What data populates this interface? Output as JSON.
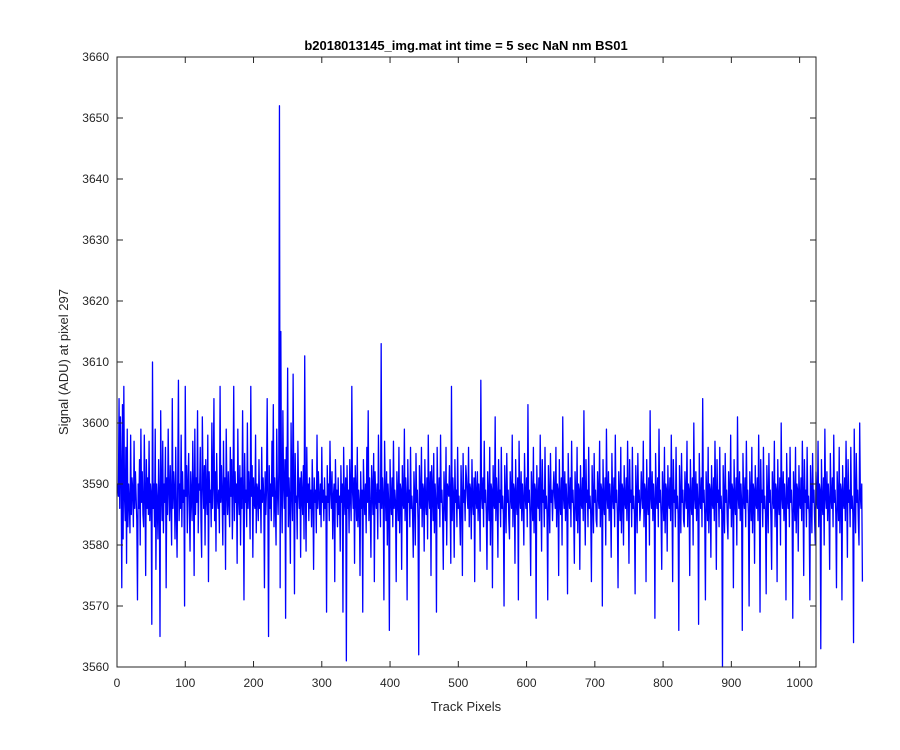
{
  "chart_data": {
    "type": "line",
    "title": "b2018013145_img.mat int time = 5 sec  NaN nm BS01",
    "xlabel": "Track Pixels",
    "ylabel": "Signal (ADU) at pixel 297",
    "xlim": [
      0,
      1024
    ],
    "ylim": [
      3560,
      3660
    ],
    "xticks": [
      0,
      100,
      200,
      300,
      400,
      500,
      600,
      700,
      800,
      900,
      1000
    ],
    "yticks": [
      3560,
      3570,
      3580,
      3590,
      3600,
      3610,
      3620,
      3630,
      3640,
      3650,
      3660
    ],
    "grid": false,
    "legend": "none",
    "series": [
      {
        "color": "#0000ff",
        "x_start": 1,
        "x_step": 1,
        "values": [
          3590,
          3588,
          3604,
          3586,
          3601,
          3592,
          3573,
          3603,
          3581,
          3606,
          3588,
          3584,
          3596,
          3577,
          3599,
          3583,
          3590,
          3587,
          3582,
          3598,
          3585,
          3591,
          3589,
          3583,
          3597,
          3586,
          3592,
          3588,
          3584,
          3571,
          3590,
          3586,
          3594,
          3580,
          3599,
          3587,
          3592,
          3585,
          3583,
          3598,
          3589,
          3575,
          3594,
          3586,
          3591,
          3585,
          3597,
          3584,
          3590,
          3588,
          3567,
          3610,
          3586,
          3590,
          3583,
          3599,
          3576,
          3590,
          3587,
          3581,
          3594,
          3588,
          3565,
          3602,
          3589,
          3584,
          3597,
          3582,
          3590,
          3587,
          3596,
          3573,
          3591,
          3585,
          3599,
          3589,
          3584,
          3593,
          3587,
          3580,
          3604,
          3586,
          3592,
          3589,
          3581,
          3596,
          3585,
          3578,
          3591,
          3607,
          3584,
          3590,
          3586,
          3598,
          3583,
          3592,
          3587,
          3589,
          3570,
          3606,
          3588,
          3593,
          3582,
          3590,
          3595,
          3586,
          3579,
          3592,
          3588,
          3584,
          3597,
          3589,
          3575,
          3599,
          3585,
          3591,
          3587,
          3602,
          3582,
          3590,
          3589,
          3596,
          3584,
          3578,
          3601,
          3591,
          3586,
          3593,
          3580,
          3594,
          3588,
          3585,
          3598,
          3574,
          3592,
          3587,
          3589,
          3583,
          3600,
          3586,
          3590,
          3604,
          3584,
          3592,
          3579,
          3595,
          3588,
          3586,
          3589,
          3582,
          3606,
          3587,
          3593,
          3588,
          3580,
          3597,
          3585,
          3591,
          3576,
          3599,
          3589,
          3585,
          3592,
          3587,
          3583,
          3596,
          3588,
          3594,
          3581,
          3589,
          3606,
          3584,
          3592,
          3587,
          3590,
          3577,
          3599,
          3588,
          3585,
          3593,
          3580,
          3591,
          3586,
          3602,
          3588,
          3571,
          3595,
          3587,
          3589,
          3583,
          3600,
          3586,
          3592,
          3588,
          3581,
          3606,
          3588,
          3593,
          3578,
          3591,
          3587,
          3586,
          3598,
          3582,
          3590,
          3589,
          3584,
          3594,
          3586,
          3589,
          3582,
          3596,
          3587,
          3591,
          3588,
          3573,
          3592,
          3585,
          3589,
          3604,
          3587,
          3565,
          3593,
          3586,
          3590,
          3584,
          3597,
          3588,
          3603,
          3583,
          3591,
          3587,
          3580,
          3599,
          3589,
          3585,
          3592,
          3652,
          3573,
          3615,
          3588,
          3582,
          3602,
          3590,
          3586,
          3594,
          3568,
          3596,
          3588,
          3609,
          3583,
          3591,
          3587,
          3577,
          3600,
          3589,
          3584,
          3608,
          3590,
          3572,
          3595,
          3587,
          3588,
          3581,
          3597,
          3589,
          3586,
          3591,
          3578,
          3592,
          3588,
          3585,
          3593,
          3581,
          3611,
          3588,
          3579,
          3596,
          3587,
          3590,
          3584,
          3591,
          3586,
          3589,
          3583,
          3594,
          3588,
          3576,
          3591,
          3587,
          3589,
          3582,
          3598,
          3586,
          3592,
          3588,
          3585,
          3590,
          3583,
          3596,
          3587,
          3589,
          3584,
          3591,
          3586,
          3588,
          3569,
          3593,
          3587,
          3590,
          3584,
          3597,
          3589,
          3586,
          3592,
          3581,
          3588,
          3590,
          3574,
          3594,
          3587,
          3589,
          3583,
          3591,
          3585,
          3588,
          3579,
          3593,
          3587,
          3590,
          3569,
          3596,
          3588,
          3585,
          3591,
          3561,
          3593,
          3586,
          3589,
          3582,
          3594,
          3588,
          3584,
          3606,
          3589,
          3586,
          3591,
          3577,
          3593,
          3588,
          3584,
          3596,
          3583,
          3589,
          3587,
          3575,
          3592,
          3586,
          3589,
          3569,
          3594,
          3588,
          3585,
          3590,
          3582,
          3596,
          3587,
          3602,
          3584,
          3591,
          3586,
          3578,
          3593,
          3589,
          3585,
          3595,
          3574,
          3592,
          3588,
          3586,
          3590,
          3581,
          3598,
          3587,
          3589,
          3583,
          3613,
          3586,
          3591,
          3588,
          3571,
          3597,
          3589,
          3584,
          3592,
          3580,
          3590,
          3587,
          3566,
          3594,
          3588,
          3585,
          3591,
          3583,
          3597,
          3586,
          3589,
          3587,
          3574,
          3592,
          3588,
          3584,
          3596,
          3582,
          3590,
          3589,
          3576,
          3593,
          3587,
          3586,
          3599,
          3584,
          3591,
          3588,
          3571,
          3594,
          3587,
          3589,
          3583,
          3596,
          3586,
          3588,
          3585,
          3578,
          3592,
          3588,
          3580,
          3595,
          3587,
          3589,
          3584,
          3562,
          3593,
          3588,
          3586,
          3596,
          3583,
          3590,
          3589,
          3579,
          3594,
          3587,
          3585,
          3591,
          3581,
          3598,
          3588,
          3586,
          3592,
          3575,
          3593,
          3589,
          3584,
          3595,
          3582,
          3590,
          3587,
          3569,
          3596,
          3588,
          3586,
          3591,
          3583,
          3598,
          3587,
          3589,
          3585,
          3576,
          3592,
          3588,
          3584,
          3596,
          3580,
          3590,
          3589,
          3588,
          3593,
          3587,
          3577,
          3606,
          3584,
          3591,
          3588,
          3578,
          3594,
          3587,
          3589,
          3583,
          3596,
          3586,
          3588,
          3585,
          3580,
          3593,
          3588,
          3575,
          3595,
          3587,
          3589,
          3584,
          3593,
          3591,
          3588,
          3586,
          3596,
          3583,
          3590,
          3589,
          3581,
          3594,
          3587,
          3585,
          3591,
          3574,
          3592,
          3588,
          3586,
          3592,
          3584,
          3590,
          3587,
          3579,
          3607,
          3588,
          3586,
          3591,
          3583,
          3597,
          3587,
          3589,
          3585,
          3576,
          3592,
          3588,
          3584,
          3596,
          3580,
          3590,
          3589,
          3573,
          3593,
          3587,
          3586,
          3601,
          3584,
          3591,
          3588,
          3578,
          3594,
          3587,
          3589,
          3583,
          3596,
          3586,
          3588,
          3585,
          3570,
          3593,
          3588,
          3582,
          3595,
          3587,
          3589,
          3584,
          3581,
          3592,
          3588,
          3586,
          3598,
          3583,
          3590,
          3589,
          3577,
          3594,
          3587,
          3585,
          3591,
          3571,
          3597,
          3588,
          3586,
          3592,
          3584,
          3590,
          3587,
          3580,
          3595,
          3588,
          3586,
          3591,
          3583,
          3603,
          3587,
          3589,
          3585,
          3575,
          3592,
          3588,
          3584,
          3596,
          3582,
          3590,
          3589,
          3568,
          3593,
          3587,
          3586,
          3591,
          3584,
          3598,
          3588,
          3579,
          3594,
          3587,
          3589,
          3583,
          3596,
          3586,
          3588,
          3585,
          3571,
          3593,
          3588,
          3582,
          3595,
          3587,
          3589,
          3584,
          3589,
          3592,
          3588,
          3586,
          3596,
          3583,
          3590,
          3589,
          3575,
          3594,
          3587,
          3585,
          3591,
          3580,
          3601,
          3588,
          3586,
          3592,
          3584,
          3590,
          3587,
          3572,
          3595,
          3588,
          3586,
          3591,
          3583,
          3597,
          3587,
          3589,
          3585,
          3577,
          3592,
          3588,
          3584,
          3596,
          3582,
          3590,
          3589,
          3576,
          3593,
          3587,
          3586,
          3591,
          3584,
          3602,
          3588,
          3580,
          3594,
          3587,
          3589,
          3583,
          3596,
          3586,
          3588,
          3585,
          3574,
          3593,
          3588,
          3582,
          3595,
          3587,
          3589,
          3584,
          3583,
          3592,
          3588,
          3586,
          3597,
          3583,
          3590,
          3589,
          3570,
          3594,
          3587,
          3585,
          3591,
          3580,
          3599,
          3588,
          3586,
          3592,
          3584,
          3590,
          3587,
          3578,
          3595,
          3588,
          3586,
          3591,
          3583,
          3598,
          3587,
          3589,
          3585,
          3573,
          3592,
          3588,
          3584,
          3596,
          3582,
          3590,
          3589,
          3580,
          3593,
          3587,
          3586,
          3591,
          3584,
          3597,
          3588,
          3577,
          3594,
          3587,
          3589,
          3583,
          3596,
          3586,
          3588,
          3585,
          3572,
          3593,
          3588,
          3582,
          3595,
          3587,
          3589,
          3584,
          3586,
          3592,
          3588,
          3586,
          3597,
          3583,
          3590,
          3589,
          3574,
          3594,
          3587,
          3585,
          3591,
          3580,
          3602,
          3588,
          3586,
          3592,
          3584,
          3590,
          3587,
          3568,
          3595,
          3588,
          3586,
          3591,
          3583,
          3599,
          3587,
          3589,
          3585,
          3576,
          3592,
          3588,
          3584,
          3596,
          3582,
          3590,
          3589,
          3579,
          3593,
          3587,
          3586,
          3591,
          3584,
          3598,
          3588,
          3574,
          3594,
          3587,
          3589,
          3583,
          3596,
          3586,
          3588,
          3585,
          3566,
          3593,
          3588,
          3582,
          3595,
          3587,
          3589,
          3584,
          3583,
          3592,
          3588,
          3586,
          3597,
          3583,
          3590,
          3589,
          3575,
          3594,
          3587,
          3585,
          3591,
          3580,
          3600,
          3588,
          3586,
          3592,
          3584,
          3590,
          3587,
          3567,
          3595,
          3588,
          3586,
          3591,
          3583,
          3604,
          3587,
          3589,
          3585,
          3571,
          3592,
          3588,
          3584,
          3596,
          3582,
          3590,
          3589,
          3578,
          3593,
          3587,
          3586,
          3591,
          3584,
          3597,
          3588,
          3576,
          3594,
          3587,
          3589,
          3583,
          3596,
          3586,
          3588,
          3585,
          3560,
          3593,
          3588,
          3582,
          3595,
          3587,
          3589,
          3584,
          3581,
          3592,
          3588,
          3586,
          3598,
          3583,
          3590,
          3589,
          3573,
          3594,
          3587,
          3585,
          3591,
          3580,
          3601,
          3588,
          3586,
          3592,
          3584,
          3590,
          3587,
          3566,
          3595,
          3588,
          3586,
          3591,
          3583,
          3597,
          3587,
          3589,
          3585,
          3570,
          3592,
          3588,
          3584,
          3596,
          3582,
          3590,
          3589,
          3577,
          3593,
          3587,
          3586,
          3591,
          3584,
          3598,
          3588,
          3569,
          3594,
          3587,
          3589,
          3583,
          3596,
          3586,
          3588,
          3585,
          3572,
          3593,
          3588,
          3582,
          3595,
          3587,
          3589,
          3584,
          3576,
          3592,
          3588,
          3586,
          3597,
          3583,
          3590,
          3589,
          3574,
          3594,
          3587,
          3585,
          3591,
          3580,
          3600,
          3588,
          3586,
          3592,
          3584,
          3590,
          3587,
          3571,
          3595,
          3588,
          3586,
          3591,
          3583,
          3596,
          3587,
          3589,
          3585,
          3568,
          3592,
          3588,
          3584,
          3596,
          3582,
          3590,
          3589,
          3579,
          3593,
          3587,
          3586,
          3591,
          3584,
          3597,
          3588,
          3575,
          3594,
          3587,
          3589,
          3583,
          3596,
          3586,
          3588,
          3585,
          3571,
          3593,
          3588,
          3582,
          3595,
          3587,
          3589,
          3584,
          3580,
          3592,
          3588,
          3586,
          3597,
          3583,
          3590,
          3589,
          3563,
          3594,
          3587,
          3585,
          3591,
          3580,
          3599,
          3588,
          3586,
          3592,
          3584,
          3590,
          3587,
          3576,
          3595,
          3588,
          3586,
          3591,
          3583,
          3598,
          3587,
          3589,
          3585,
          3573,
          3592,
          3588,
          3584,
          3596,
          3582,
          3590,
          3589,
          3571,
          3593,
          3587,
          3586,
          3591,
          3584,
          3597,
          3588,
          3578,
          3594,
          3587,
          3589,
          3583,
          3596,
          3586,
          3588,
          3585,
          3564,
          3599,
          3588,
          3582,
          3595,
          3587,
          3589,
          3584,
          3580,
          3600,
          3588,
          3586,
          3590,
          3574
        ]
      }
    ]
  }
}
